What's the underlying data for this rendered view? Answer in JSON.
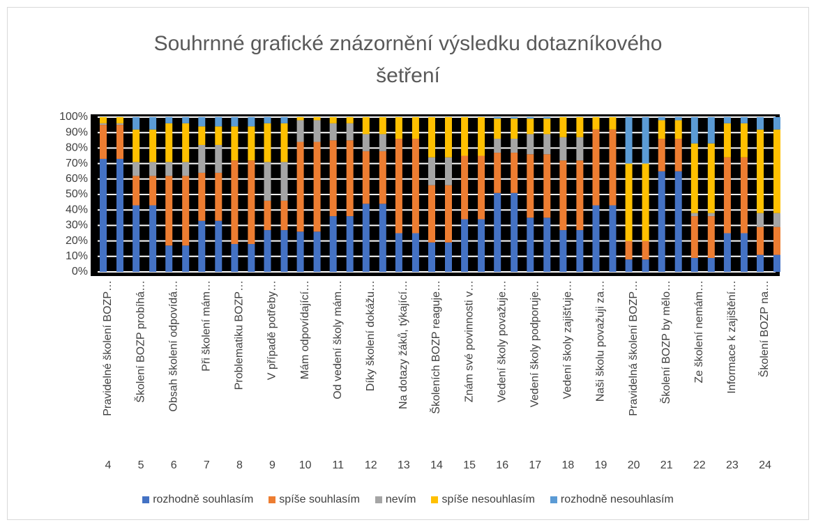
{
  "chart_data": {
    "type": "stacked_bar",
    "title": "Souhrnné grafické znázornění výsledku dotazníkového šetření",
    "categories": [
      "Pravidelné školení BOZP…",
      "Školení BOZP probíhá…",
      "Obsah školení odpovídá…",
      "Při školení mám…",
      "Problematiku BOZP…",
      "V případě potřeby…",
      "Mám odpovídající…",
      "Od vedení školy mám…",
      "Díky školení dokážu…",
      "Na dotazy žáků, týkající…",
      "Školeních BOZP reaguje…",
      "Znám své povinnosti v…",
      "Vedení školy považuje…",
      "Vedení školy podporuje…",
      "Vedení školy zajišťuje…",
      "Naši školu považuji za…",
      "Pravidelná školení BOZP…",
      "Školení BOZP by mělo…",
      "Ze školení nemám…",
      "Informace k zajištění…",
      "Školení BOZP na…"
    ],
    "category_numbers": [
      "4",
      "5",
      "6",
      "7",
      "8",
      "9",
      "10",
      "11",
      "12",
      "13",
      "14",
      "15",
      "16",
      "17",
      "18",
      "19",
      "20",
      "21",
      "22",
      "23",
      "24"
    ],
    "series": [
      {
        "name": "rozhodně souhlasím",
        "color": "#4472c4",
        "values": [
          73,
          43,
          17,
          33,
          18,
          27,
          26,
          36,
          44,
          25,
          19,
          34,
          51,
          35,
          27,
          43,
          8,
          65,
          9,
          25,
          11
        ]
      },
      {
        "name": "spíše souhlasím",
        "color": "#ed7d31",
        "values": [
          22,
          19,
          45,
          31,
          54,
          19,
          58,
          49,
          34,
          61,
          37,
          41,
          26,
          41,
          45,
          49,
          12,
          21,
          27,
          49,
          18
        ]
      },
      {
        "name": "nevím",
        "color": "#a5a5a5",
        "values": [
          1,
          9,
          9,
          18,
          0,
          25,
          14,
          11,
          11,
          0,
          18,
          0,
          9,
          13,
          15,
          0,
          0,
          0,
          2,
          0,
          9
        ]
      },
      {
        "name": "spíše nesouhlasím",
        "color": "#ffc000",
        "values": [
          4,
          21,
          25,
          12,
          22,
          25,
          2,
          4,
          11,
          14,
          26,
          25,
          13,
          10,
          13,
          8,
          50,
          12,
          45,
          22,
          54
        ]
      },
      {
        "name": "rozhodně nesouhlasím",
        "color": "#5b9bd5",
        "values": [
          0,
          8,
          4,
          6,
          6,
          4,
          0,
          0,
          0,
          0,
          0,
          0,
          1,
          1,
          0,
          0,
          30,
          2,
          17,
          4,
          8
        ]
      }
    ],
    "ylim": [
      0,
      100
    ],
    "yticks": [
      {
        "value": 0,
        "label": "0%"
      },
      {
        "value": 10,
        "label": "10%"
      },
      {
        "value": 20,
        "label": "20%"
      },
      {
        "value": 30,
        "label": "30%"
      },
      {
        "value": 40,
        "label": "40%"
      },
      {
        "value": 50,
        "label": "50%"
      },
      {
        "value": 60,
        "label": "60%"
      },
      {
        "value": 70,
        "label": "70%"
      },
      {
        "value": 80,
        "label": "80%"
      },
      {
        "value": 90,
        "label": "90%"
      },
      {
        "value": 100,
        "label": "100%"
      }
    ],
    "grid": true,
    "legend": "bottom"
  }
}
